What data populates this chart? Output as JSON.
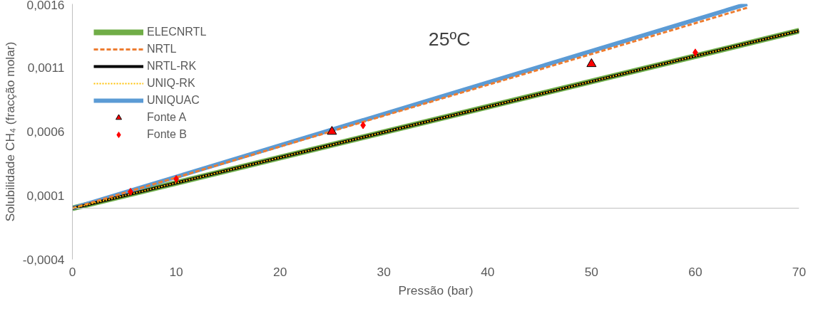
{
  "chart_data": {
    "type": "line",
    "xlabel": "Pressão (bar)",
    "ylabel": "Solubilidade CH₄ (fracção molar)",
    "annotations": [
      "25ºC"
    ],
    "xlim": [
      0,
      70
    ],
    "xticks": [
      0,
      10,
      20,
      30,
      40,
      50,
      60,
      70
    ],
    "ylim": [
      -0.0004,
      0.0016
    ],
    "yticks": [
      {
        "value": -0.0004,
        "label": "-0,0004"
      },
      {
        "value": 0.0001,
        "label": "0,0001"
      },
      {
        "value": 0.0006,
        "label": "0,0006"
      },
      {
        "value": 0.0011,
        "label": "0,0011"
      },
      {
        "value": 0.0016,
        "label": "0,0016"
      }
    ],
    "grid": false,
    "legend": "top left",
    "marker": "none",
    "series": [
      {
        "name": "ELECNRTL",
        "color": "#70ad47",
        "x": [
          0,
          70
        ],
        "values": [
          0,
          0.00139
        ],
        "line_style": "solid"
      },
      {
        "name": "NRTL",
        "color": "#ed7d31",
        "x": [
          0,
          65
        ],
        "values": [
          0,
          0.00157
        ],
        "line_style": "dashed"
      },
      {
        "name": "NRTL-RK",
        "color": "#000000",
        "x": [
          0,
          70
        ],
        "values": [
          0,
          0.00139
        ],
        "line_style": "solid"
      },
      {
        "name": "UNIQ-RK",
        "color": "#ffc000",
        "x": [
          0,
          70
        ],
        "values": [
          0,
          0.00139
        ],
        "line_style": "dotted"
      },
      {
        "name": "UNIQUAC",
        "color": "#5b9bd5",
        "x": [
          0,
          65
        ],
        "values": [
          0,
          0.0016
        ],
        "line_style": "solid"
      },
      {
        "name": "Fonte A",
        "type": "scatter",
        "marker": "triangle",
        "color": "#ff0000",
        "x": [
          25,
          50
        ],
        "values": [
          0.0006,
          0.00113
        ]
      },
      {
        "name": "Fonte B",
        "type": "scatter",
        "marker": "diamond",
        "color": "#ff0000",
        "x": [
          5.6,
          10,
          28,
          60
        ],
        "values": [
          0.00013,
          0.00023,
          0.00065,
          0.00122
        ]
      }
    ]
  }
}
